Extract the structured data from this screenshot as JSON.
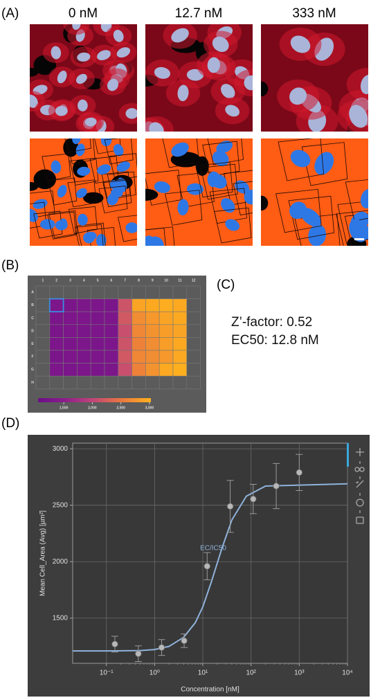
{
  "panel_a": {
    "label": "(A)",
    "columns": [
      "0 nM",
      "12.7 nM",
      "333 nM"
    ]
  },
  "panel_b": {
    "label": "(B)",
    "column_labels": [
      "1",
      "2",
      "3",
      "4",
      "5",
      "6",
      "7",
      "8",
      "9",
      "10",
      "11",
      "12"
    ],
    "row_labels": [
      "A",
      "B",
      "C",
      "D",
      "E",
      "F",
      "G",
      "H"
    ],
    "values": [
      [
        null,
        null,
        null,
        null,
        null,
        null,
        null,
        null,
        null,
        null,
        null,
        null
      ],
      [
        null,
        1300,
        1290,
        1310,
        1300,
        1280,
        2150,
        2900,
        2950,
        2980,
        2950,
        null
      ],
      [
        null,
        1290,
        1300,
        1300,
        1290,
        1300,
        2200,
        2700,
        2800,
        2900,
        2950,
        null
      ],
      [
        null,
        1280,
        1300,
        1290,
        1300,
        1290,
        2100,
        2650,
        2750,
        2850,
        2900,
        null
      ],
      [
        null,
        1300,
        1290,
        1300,
        1280,
        1300,
        2150,
        2600,
        2700,
        2850,
        2950,
        null
      ],
      [
        null,
        1290,
        1300,
        1290,
        1300,
        1300,
        2200,
        2650,
        2700,
        2800,
        2950,
        null
      ],
      [
        null,
        1300,
        1280,
        1300,
        1290,
        1310,
        2100,
        2600,
        2750,
        2950,
        3000,
        null
      ],
      [
        null,
        null,
        null,
        null,
        null,
        null,
        null,
        null,
        null,
        null,
        null,
        null
      ]
    ],
    "colormap": [
      {
        "value": 1050,
        "color": "#6a0f88"
      },
      {
        "value": 1500,
        "color": "#8a1c8c"
      },
      {
        "value": 2000,
        "color": "#c0457a"
      },
      {
        "value": 2500,
        "color": "#e97640"
      },
      {
        "value": 3025,
        "color": "#ffb21c"
      }
    ],
    "colorbar_range": [
      1050,
      3025
    ],
    "colorbar_ticks": [
      {
        "value": 1500,
        "label": "1,500"
      },
      {
        "value": 2000,
        "label": "2,000"
      },
      {
        "value": 2500,
        "label": "2,500"
      },
      {
        "value": 3000,
        "label": "3,000"
      }
    ]
  },
  "panel_c": {
    "label": "(C)",
    "lines": [
      "Z’-factor: 0.52",
      "EC50: 12.8 nM"
    ]
  },
  "chart_data": {
    "type": "scatter",
    "panel_label": "(D)",
    "x_label": "Concentration [nM]",
    "y_label": "Mean Cell_Area (Avg) [µm²]",
    "x_scale": "log",
    "xlim": [
      0.02,
      10000
    ],
    "xticks": [
      {
        "value": 0.1,
        "label": "10⁻¹"
      },
      {
        "value": 1,
        "label": "10⁰"
      },
      {
        "value": 10,
        "label": "10¹"
      },
      {
        "value": 100,
        "label": "10²"
      },
      {
        "value": 1000,
        "label": "10³"
      },
      {
        "value": 10000,
        "label": "10⁴"
      }
    ],
    "ylim": [
      1100,
      3050
    ],
    "yticks": [
      1500,
      2000,
      2500,
      3000
    ],
    "grid": true,
    "series": [
      {
        "color": "#b8b8b8",
        "x": [
          0.15,
          0.46,
          1.4,
          4.1,
          12.3,
          37,
          111,
          333,
          1000
        ],
        "values": [
          1270,
          1185,
          1240,
          1300,
          1960,
          2490,
          2555,
          2670,
          2790
        ],
        "errors": [
          70,
          70,
          70,
          60,
          120,
          230,
          130,
          200,
          160
        ]
      }
    ],
    "fit": {
      "color": "#8fb3dc",
      "x": [
        0.02,
        0.1,
        0.5,
        1,
        2,
        4,
        7,
        10,
        15,
        25,
        40,
        80,
        200,
        10000
      ],
      "values": [
        1210,
        1210,
        1213,
        1222,
        1250,
        1330,
        1460,
        1600,
        1820,
        2120,
        2370,
        2580,
        2670,
        2690
      ]
    },
    "annotation": "EC/IC50"
  }
}
